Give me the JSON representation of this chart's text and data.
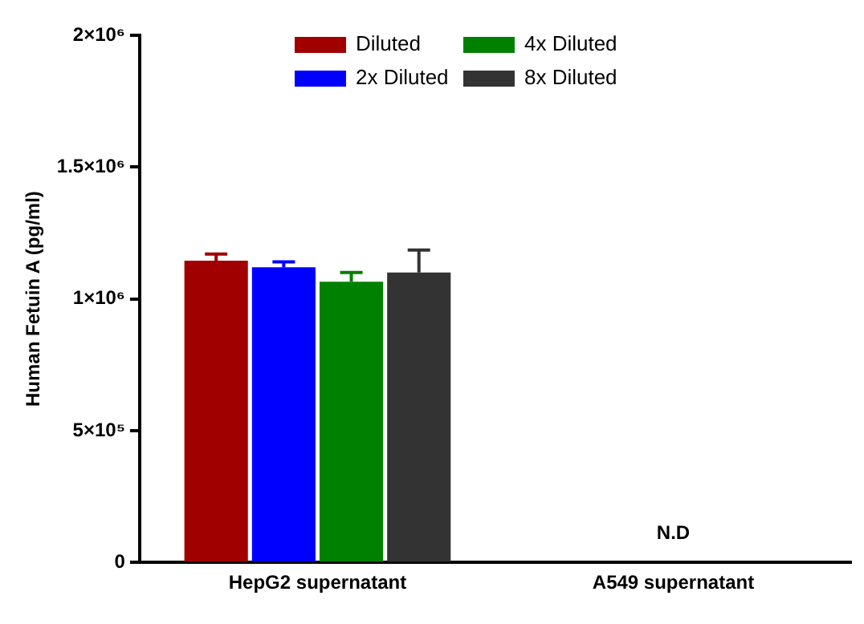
{
  "chart_data": {
    "type": "bar",
    "ylabel": "Human Fetuin A (pg/ml)",
    "categories": [
      "HepG2 supernatant",
      "A549 supernatant"
    ],
    "series": [
      {
        "name": "Diluted",
        "color": "#a00000",
        "values": [
          1145000,
          null
        ],
        "errors": [
          [
            1145000,
            1170000
          ],
          null
        ]
      },
      {
        "name": "2x Diluted",
        "color": "#0000ff",
        "values": [
          1120000,
          null
        ],
        "errors": [
          [
            1120000,
            1140000
          ],
          null
        ]
      },
      {
        "name": "4x Diluted",
        "color": "#008000",
        "values": [
          1065000,
          null
        ],
        "errors": [
          [
            1065000,
            1100000
          ],
          null
        ]
      },
      {
        "name": "8x Diluted",
        "color": "#333333",
        "values": [
          1100000,
          null
        ],
        "errors": [
          [
            1100000,
            1185000
          ],
          null
        ]
      }
    ],
    "ylim": [
      0,
      2000000
    ],
    "yticks": [
      0,
      {
        "value": 500000,
        "label": "5×10⁵"
      },
      {
        "value": 1000000,
        "label": "1×10⁶"
      },
      {
        "value": 1500000,
        "label": "1.5×10⁶"
      },
      {
        "value": 2000000,
        "label": "2×10⁶"
      }
    ],
    "annotations": [
      "N.D"
    ],
    "grid": false,
    "legend": "top"
  }
}
